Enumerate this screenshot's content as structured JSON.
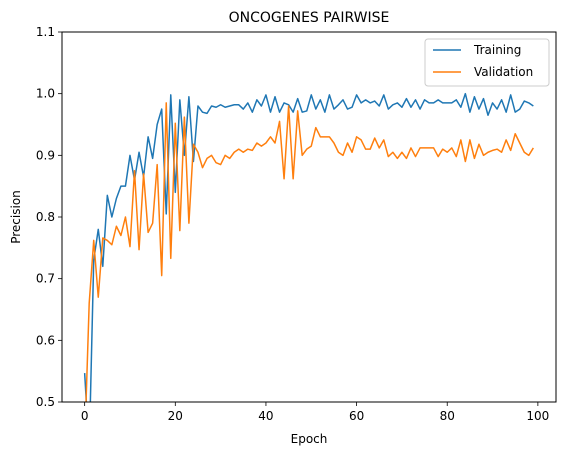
{
  "chart_data": {
    "type": "line",
    "title": "ONCOGENES PAIRWISE",
    "xlabel": "Epoch",
    "ylabel": "Precision",
    "xlim": [
      -5,
      104
    ],
    "ylim": [
      0.5,
      1.1
    ],
    "xticks": [
      0,
      20,
      40,
      60,
      80,
      100
    ],
    "yticks": [
      0.5,
      0.6,
      0.7,
      0.8,
      0.9,
      1.0,
      1.1
    ],
    "ytick_labels": [
      "0.5",
      "0.6",
      "0.7",
      "0.8",
      "0.9",
      "1.0",
      "1.1"
    ],
    "grid": false,
    "legend_position": "top-right",
    "series": [
      {
        "name": "Training",
        "color": "#1f77b4",
        "values": [
          0.547,
          0.42,
          0.73,
          0.78,
          0.72,
          0.835,
          0.8,
          0.83,
          0.85,
          0.85,
          0.9,
          0.86,
          0.905,
          0.865,
          0.93,
          0.895,
          0.95,
          0.975,
          0.805,
          0.998,
          0.84,
          0.99,
          0.9,
          0.995,
          0.89,
          0.98,
          0.97,
          0.968,
          0.98,
          0.978,
          0.982,
          0.978,
          0.98,
          0.982,
          0.982,
          0.975,
          0.985,
          0.97,
          0.99,
          0.98,
          0.998,
          0.97,
          0.995,
          0.97,
          0.985,
          0.982,
          0.97,
          0.992,
          0.97,
          0.972,
          0.998,
          0.975,
          0.99,
          0.97,
          0.998,
          0.975,
          0.982,
          0.99,
          0.975,
          0.978,
          0.998,
          0.985,
          0.99,
          0.985,
          0.988,
          0.98,
          0.998,
          0.975,
          0.982,
          0.985,
          0.978,
          0.992,
          0.978,
          0.99,
          0.975,
          0.99,
          0.985,
          0.985,
          0.99,
          0.985,
          0.985,
          0.985,
          0.99,
          0.978,
          1.0,
          0.97,
          0.995,
          0.975,
          0.992,
          0.965,
          0.985,
          0.975,
          0.99,
          0.97,
          0.998,
          0.97,
          0.975,
          0.988,
          0.985,
          0.98
        ]
      },
      {
        "name": "Validation",
        "color": "#ff7f0e",
        "values": [
          0.43,
          0.66,
          0.762,
          0.67,
          0.766,
          0.762,
          0.755,
          0.785,
          0.77,
          0.8,
          0.752,
          0.875,
          0.747,
          0.87,
          0.775,
          0.79,
          0.885,
          0.705,
          0.985,
          0.733,
          0.952,
          0.778,
          0.962,
          0.79,
          0.918,
          0.905,
          0.88,
          0.895,
          0.9,
          0.888,
          0.885,
          0.9,
          0.895,
          0.905,
          0.91,
          0.905,
          0.91,
          0.908,
          0.92,
          0.915,
          0.92,
          0.93,
          0.92,
          0.955,
          0.862,
          0.98,
          0.862,
          0.972,
          0.9,
          0.91,
          0.915,
          0.945,
          0.93,
          0.93,
          0.93,
          0.92,
          0.905,
          0.9,
          0.92,
          0.905,
          0.93,
          0.925,
          0.91,
          0.91,
          0.928,
          0.912,
          0.925,
          0.898,
          0.905,
          0.895,
          0.905,
          0.895,
          0.912,
          0.898,
          0.912,
          0.912,
          0.912,
          0.912,
          0.898,
          0.91,
          0.905,
          0.912,
          0.898,
          0.925,
          0.89,
          0.925,
          0.895,
          0.918,
          0.9,
          0.905,
          0.908,
          0.91,
          0.905,
          0.925,
          0.908,
          0.935,
          0.92,
          0.905,
          0.9,
          0.912
        ]
      }
    ]
  }
}
